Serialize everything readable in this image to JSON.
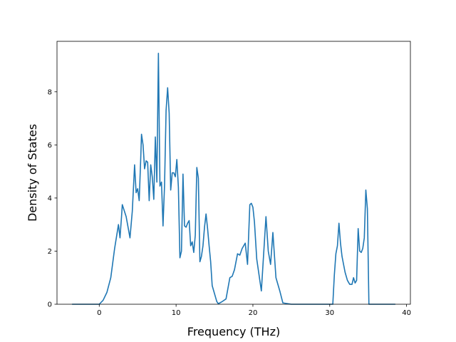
{
  "chart_data": {
    "type": "line",
    "title": "",
    "xlabel": "Frequency (THz)",
    "ylabel": "Density of States",
    "xlim": [
      -5.5,
      40.5
    ],
    "ylim": [
      0,
      9.9
    ],
    "xticks": [
      0,
      10,
      20,
      30,
      40
    ],
    "yticks": [
      0,
      2,
      4,
      6,
      8
    ],
    "grid": false,
    "line_color": "#1f77b4",
    "series": [
      {
        "x": [
          -3.5,
          0,
          0.5,
          1,
          1.5,
          2,
          2.5,
          2.7,
          2.9,
          3.0,
          3.5,
          4.0,
          4.3,
          4.6,
          4.8,
          5.0,
          5.2,
          5.4,
          5.5,
          5.7,
          5.9,
          6.1,
          6.3,
          6.5,
          6.7,
          6.9,
          7.1,
          7.3,
          7.5,
          7.7,
          7.9,
          8.1,
          8.3,
          8.5,
          8.7,
          8.9,
          9.1,
          9.3,
          9.5,
          9.7,
          9.9,
          10.1,
          10.3,
          10.5,
          10.7,
          10.9,
          11.1,
          11.3,
          11.5,
          11.7,
          11.9,
          12.1,
          12.3,
          12.5,
          12.7,
          12.9,
          13.1,
          13.3,
          13.5,
          13.7,
          13.9,
          14.1,
          14.3,
          14.5,
          14.7,
          14.9,
          15.1,
          15.3,
          15.5,
          16.0,
          16.5,
          17.0,
          17.3,
          17.6,
          18.0,
          18.3,
          18.6,
          19.0,
          19.3,
          19.6,
          19.8,
          20.0,
          20.2,
          20.5,
          20.8,
          21.1,
          21.4,
          21.7,
          22.0,
          22.3,
          22.6,
          23.0,
          23.5,
          23.9,
          25.0,
          28.0,
          30.4,
          30.6,
          30.8,
          31.0,
          31.2,
          31.4,
          31.6,
          31.8,
          32.0,
          32.3,
          32.6,
          32.9,
          33.1,
          33.3,
          33.5,
          33.7,
          33.9,
          34.1,
          34.3,
          34.5,
          34.7,
          34.9,
          35.1,
          35.3,
          36.0,
          38.5
        ],
        "y": [
          0,
          0,
          0.15,
          0.45,
          1.0,
          2.1,
          3.0,
          2.5,
          3.3,
          3.75,
          3.3,
          2.5,
          3.5,
          5.25,
          4.2,
          4.35,
          3.9,
          5.5,
          6.4,
          6.0,
          5.1,
          5.4,
          5.35,
          3.9,
          5.25,
          4.8,
          3.95,
          6.3,
          4.6,
          9.45,
          4.45,
          4.6,
          2.95,
          4.5,
          7.3,
          8.15,
          7.2,
          4.3,
          4.95,
          4.95,
          4.8,
          5.45,
          4.4,
          1.75,
          2.0,
          4.9,
          2.95,
          2.9,
          3.05,
          3.15,
          2.2,
          2.35,
          1.95,
          2.6,
          5.15,
          4.75,
          1.6,
          1.8,
          2.2,
          2.9,
          3.4,
          2.85,
          2.2,
          1.6,
          0.7,
          0.5,
          0.3,
          0.1,
          0.02,
          0.1,
          0.2,
          1.0,
          1.05,
          1.3,
          1.9,
          1.85,
          2.1,
          2.3,
          1.5,
          3.75,
          3.8,
          3.65,
          3.1,
          1.7,
          1.1,
          0.5,
          1.9,
          3.3,
          2.0,
          1.5,
          2.7,
          1.0,
          0.5,
          0.05,
          0,
          0,
          0,
          1.1,
          1.9,
          2.2,
          3.05,
          2.3,
          1.8,
          1.5,
          1.2,
          0.9,
          0.75,
          0.75,
          1.0,
          0.8,
          0.9,
          2.85,
          2.0,
          1.95,
          2.1,
          2.5,
          4.3,
          3.6,
          0,
          0,
          0,
          0
        ]
      }
    ]
  }
}
